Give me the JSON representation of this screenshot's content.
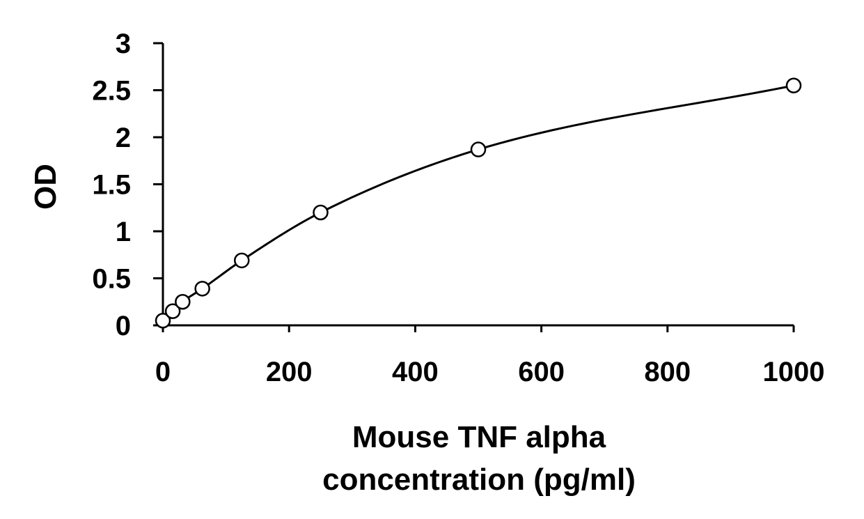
{
  "chart_data": {
    "type": "scatter",
    "xlabel_lines": [
      "Mouse TNF alpha",
      "concentration (pg/ml)"
    ],
    "ylabel": "OD",
    "xlim": [
      0,
      1000
    ],
    "ylim": [
      0,
      3
    ],
    "x_ticks": [
      "0",
      "200",
      "400",
      "600",
      "800",
      "1000"
    ],
    "y_ticks": [
      "0",
      "0.5",
      "1",
      "1.5",
      "2",
      "2.5",
      "3"
    ],
    "grid": false,
    "legend": "none",
    "series": [
      {
        "points": [
          {
            "x": 0,
            "y": 0.05
          },
          {
            "x": 15.6,
            "y": 0.15
          },
          {
            "x": 31.25,
            "y": 0.25
          },
          {
            "x": 62.5,
            "y": 0.39
          },
          {
            "x": 125,
            "y": 0.69
          },
          {
            "x": 250,
            "y": 1.2
          },
          {
            "x": 500,
            "y": 1.87
          },
          {
            "x": 1000,
            "y": 2.55
          }
        ],
        "fit": "smooth-curve"
      }
    ]
  }
}
